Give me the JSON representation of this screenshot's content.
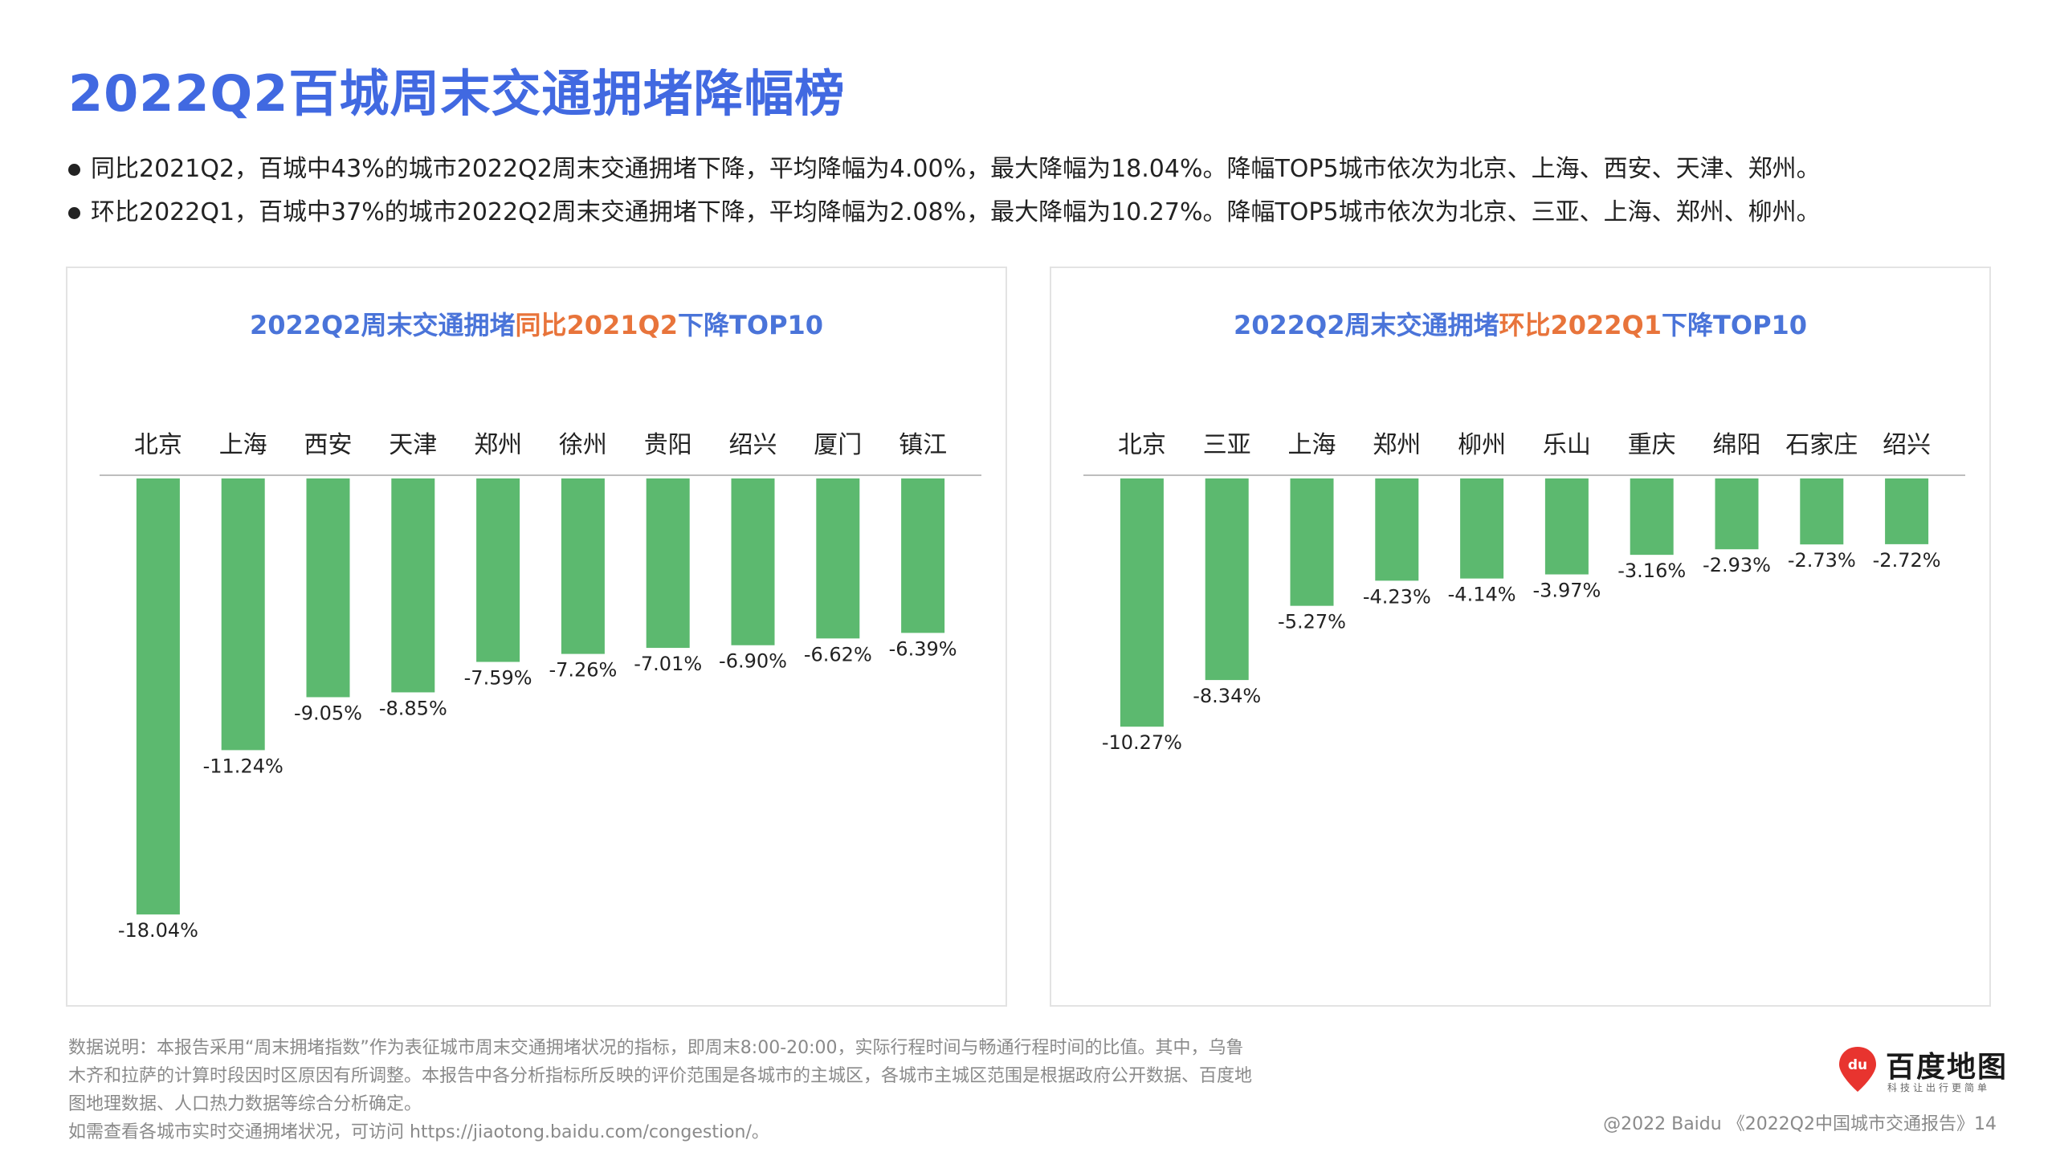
{
  "page": {
    "title": "2022Q2百城周末交通拥堵降幅榜",
    "bullets": [
      "同比2021Q2，百城中43%的城市2022Q2周末交通拥堵下降，平均降幅为4.00%，最大降幅为18.04%。降幅TOP5城市依次为北京、上海、西安、天津、郑州。",
      "环比2022Q1，百城中37%的城市2022Q2周末交通拥堵下降，平均降幅为2.08%，最大降幅为10.27%。降幅TOP5城市依次为北京、三亚、上海、郑州、柳州。"
    ],
    "note_lines": [
      "数据说明：本报告采用“周末拥堵指数”作为表征城市周末交通拥堵状况的指标，即周末8:00-20:00，实际行程时间与畅通行程时间的比值。其中，乌鲁",
      "木齐和拉萨的计算时段因时区原因有所调整。本报告中各分析指标所反映的评价范围是各城市的主城区，各城市主城区范围是根据政府公开数据、百度地",
      "图地理数据、人口热力数据等综合分析确定。",
      "如需查看各城市实时交通拥堵状况，可访问 https://jiaotong.baidu.com/congestion/。"
    ],
    "footer": "@2022 Baidu 《2022Q2中国城市交通报告》14",
    "logo": {
      "pin_text": "du",
      "name": "百度地图",
      "slogan": "科技让出行更简单",
      "icon": "map-pin-icon"
    },
    "colors": {
      "title": "#4169e1",
      "chart_title": "#4a74d9",
      "highlight": "#e8743b",
      "bar": "#5cb96f",
      "logo_red": "#e8342f"
    }
  },
  "chart_data": [
    {
      "type": "bar",
      "title_parts": [
        "2022Q2周末交通拥堵",
        "同比2021Q2",
        "下降TOP10"
      ],
      "categories": [
        "北京",
        "上海",
        "西安",
        "天津",
        "郑州",
        "徐州",
        "贵阳",
        "绍兴",
        "厦门",
        "镇江"
      ],
      "values": [
        -18.04,
        -11.24,
        -9.05,
        -8.85,
        -7.59,
        -7.26,
        -7.01,
        -6.9,
        -6.62,
        -6.39
      ],
      "labels": [
        "-18.04%",
        "-11.24%",
        "-9.05%",
        "-8.85%",
        "-7.59%",
        "-7.26%",
        "-7.01%",
        "-6.90%",
        "-6.62%",
        "-6.39%"
      ],
      "ylim": [
        -20,
        0
      ],
      "xlabel": "",
      "ylabel": "",
      "grid": false,
      "legend": "none"
    },
    {
      "type": "bar",
      "title_parts": [
        "2022Q2周末交通拥堵",
        "环比2022Q1",
        "下降TOP10"
      ],
      "categories": [
        "北京",
        "三亚",
        "上海",
        "郑州",
        "柳州",
        "乐山",
        "重庆",
        "绵阳",
        "石家庄",
        "绍兴"
      ],
      "values": [
        -10.27,
        -8.34,
        -5.27,
        -4.23,
        -4.14,
        -3.97,
        -3.16,
        -2.93,
        -2.73,
        -2.72
      ],
      "labels": [
        "-10.27%",
        "-8.34%",
        "-5.27%",
        "-4.23%",
        "-4.14%",
        "-3.97%",
        "-3.16%",
        "-2.93%",
        "-2.73%",
        "-2.72%"
      ],
      "ylim": [
        -20,
        0
      ],
      "xlabel": "",
      "ylabel": "",
      "grid": false,
      "legend": "none"
    }
  ]
}
